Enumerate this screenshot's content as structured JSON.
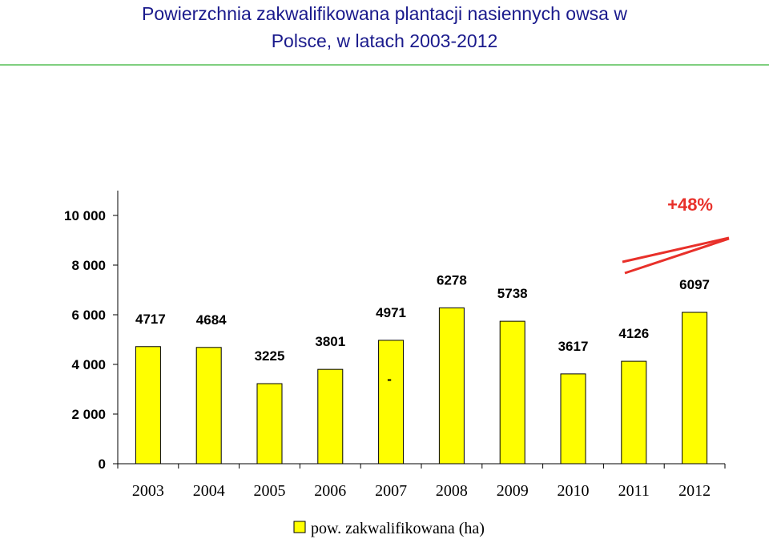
{
  "chart_data": {
    "type": "bar",
    "title_lines": [
      "Powierzchnia zakwalifikowana plantacji nasiennych owsa w",
      "Polsce, w latach 2003-2012"
    ],
    "categories": [
      "2003",
      "2004",
      "2005",
      "2006",
      "2007",
      "2008",
      "2009",
      "2010",
      "2011",
      "2012"
    ],
    "series": [
      {
        "name": "pow. zakwalifikowana (ha)",
        "values": [
          4717,
          4684,
          3225,
          3801,
          4971,
          6278,
          5738,
          3617,
          4126,
          6097
        ],
        "labels": [
          "4717",
          "4684",
          "3225",
          "3801",
          "4971",
          "6278",
          "5738",
          "3617",
          "4126",
          "6097"
        ],
        "color": "#ffff00"
      }
    ],
    "y_ticks": [
      0,
      2000,
      4000,
      6000,
      8000,
      10000
    ],
    "y_tick_labels": [
      "0",
      "2 000",
      "4 000",
      "6 000",
      "8 000",
      "10 000"
    ],
    "ylim": [
      0,
      11000
    ],
    "annotation": "+48%",
    "annotation_color": "#e8302a",
    "small_mark": "-",
    "legend_position": "bottom",
    "grid": false
  }
}
